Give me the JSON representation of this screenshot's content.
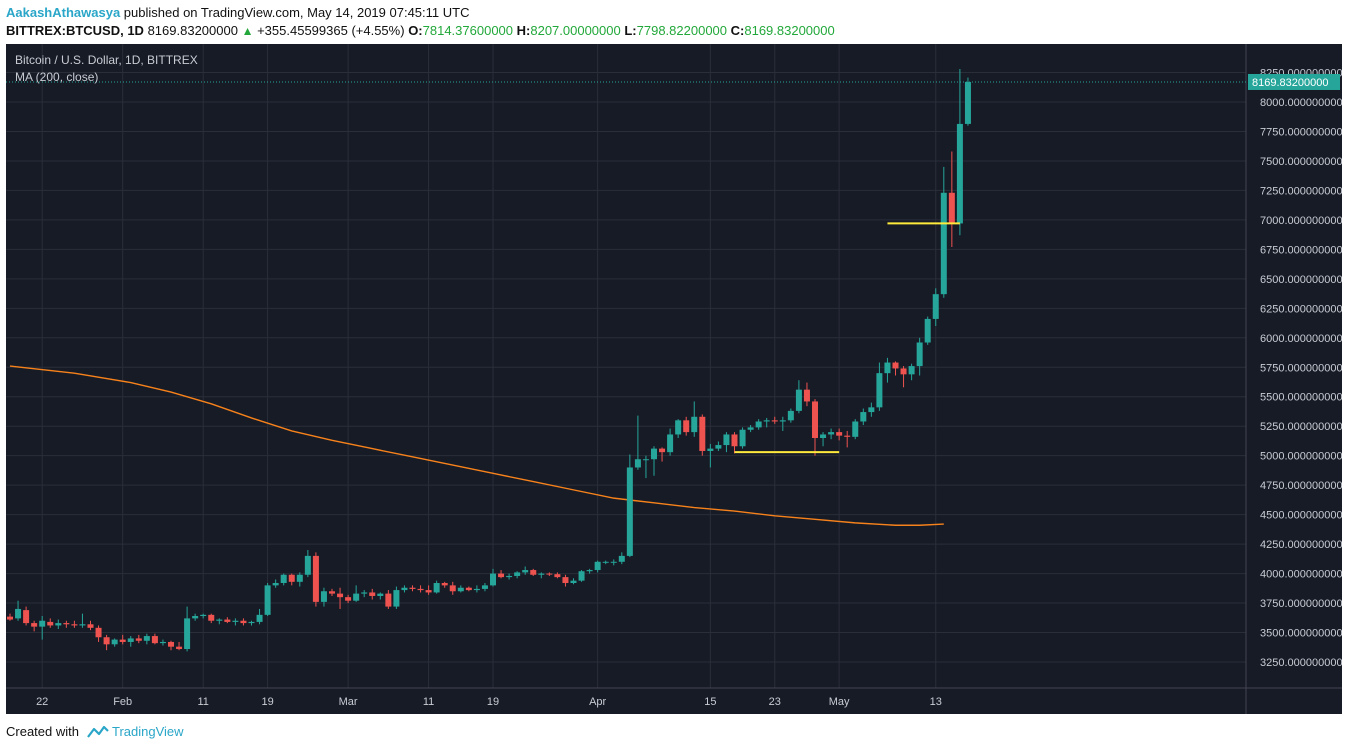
{
  "header": {
    "author": "AakashAthawasya",
    "published": "published on TradingView.com, May 14, 2019 07:45:11 UTC",
    "symbol": "BITTREX:BTCUSD, 1D",
    "last": "8169.83200000",
    "change": "+355.45599365 (+4.55%)",
    "o_label": "O:",
    "o_val": "7814.37600000",
    "h_label": "H:",
    "h_val": "8207.00000000",
    "l_label": "L:",
    "l_val": "7798.82200000",
    "c_label": "C:",
    "c_val": "8169.83200000"
  },
  "legend": {
    "title": "Bitcoin / U.S. Dollar, 1D, BITTREX",
    "indicator": "MA (200, close)"
  },
  "footer": {
    "created": "Created with",
    "brand": "TradingView"
  },
  "colors": {
    "up": "#26a69a",
    "down": "#ef5350",
    "ma": "#f7821b",
    "support": "#ffeb3b",
    "grid": "#2a2e39",
    "bg": "#171b26"
  },
  "chart_data": {
    "type": "candlestick",
    "title": "Bitcoin / U.S. Dollar, 1D, BITTREX",
    "last_price_label": "8169.83200000",
    "y_ticks": [
      3250,
      3500,
      3750,
      4000,
      4250,
      4500,
      4750,
      5000,
      5250,
      5500,
      5750,
      6000,
      6250,
      6500,
      6750,
      7000,
      7250,
      7500,
      7750,
      8000,
      8250
    ],
    "y_tick_labels": [
      "3250.000000000",
      "3500.000000000",
      "3750.000000000",
      "4000.000000000",
      "4250.000000000",
      "4500.000000000",
      "4750.000000000",
      "5000.000000000",
      "5250.000000000",
      "5500.000000000",
      "5750.000000000",
      "6000.000000000",
      "6250.000000000",
      "6500.000000000",
      "6750.000000000",
      "7000.000000000",
      "7250.000000000",
      "7500.000000000",
      "7750.000000000",
      "8000.000000000",
      "8250.000000000"
    ],
    "x_ticks": [
      {
        "i": 4,
        "label": "22"
      },
      {
        "i": 14,
        "label": "Feb"
      },
      {
        "i": 24,
        "label": "11"
      },
      {
        "i": 32,
        "label": "19"
      },
      {
        "i": 42,
        "label": "Mar"
      },
      {
        "i": 52,
        "label": "11"
      },
      {
        "i": 60,
        "label": "19"
      },
      {
        "i": 73,
        "label": "Apr"
      },
      {
        "i": 87,
        "label": "15"
      },
      {
        "i": 95,
        "label": "23"
      },
      {
        "i": 103,
        "label": "May"
      },
      {
        "i": 115,
        "label": "13"
      }
    ],
    "candles": [
      {
        "o": 3635,
        "h": 3660,
        "l": 3600,
        "c": 3610
      },
      {
        "o": 3620,
        "h": 3770,
        "l": 3600,
        "c": 3700
      },
      {
        "o": 3690,
        "h": 3720,
        "l": 3560,
        "c": 3580
      },
      {
        "o": 3580,
        "h": 3600,
        "l": 3510,
        "c": 3550
      },
      {
        "o": 3550,
        "h": 3640,
        "l": 3440,
        "c": 3600
      },
      {
        "o": 3590,
        "h": 3620,
        "l": 3540,
        "c": 3560
      },
      {
        "o": 3560,
        "h": 3610,
        "l": 3530,
        "c": 3580
      },
      {
        "o": 3580,
        "h": 3600,
        "l": 3540,
        "c": 3570
      },
      {
        "o": 3570,
        "h": 3600,
        "l": 3540,
        "c": 3560
      },
      {
        "o": 3560,
        "h": 3660,
        "l": 3540,
        "c": 3570
      },
      {
        "o": 3570,
        "h": 3600,
        "l": 3520,
        "c": 3540
      },
      {
        "o": 3540,
        "h": 3560,
        "l": 3420,
        "c": 3460
      },
      {
        "o": 3460,
        "h": 3480,
        "l": 3350,
        "c": 3400
      },
      {
        "o": 3400,
        "h": 3450,
        "l": 3380,
        "c": 3440
      },
      {
        "o": 3440,
        "h": 3480,
        "l": 3400,
        "c": 3420
      },
      {
        "o": 3420,
        "h": 3470,
        "l": 3380,
        "c": 3450
      },
      {
        "o": 3450,
        "h": 3480,
        "l": 3410,
        "c": 3430
      },
      {
        "o": 3430,
        "h": 3490,
        "l": 3400,
        "c": 3470
      },
      {
        "o": 3470,
        "h": 3490,
        "l": 3400,
        "c": 3410
      },
      {
        "o": 3410,
        "h": 3440,
        "l": 3390,
        "c": 3420
      },
      {
        "o": 3420,
        "h": 3430,
        "l": 3350,
        "c": 3380
      },
      {
        "o": 3380,
        "h": 3420,
        "l": 3350,
        "c": 3360
      },
      {
        "o": 3360,
        "h": 3720,
        "l": 3340,
        "c": 3620
      },
      {
        "o": 3620,
        "h": 3660,
        "l": 3600,
        "c": 3640
      },
      {
        "o": 3640,
        "h": 3660,
        "l": 3620,
        "c": 3650
      },
      {
        "o": 3650,
        "h": 3660,
        "l": 3580,
        "c": 3600
      },
      {
        "o": 3600,
        "h": 3620,
        "l": 3570,
        "c": 3610
      },
      {
        "o": 3610,
        "h": 3630,
        "l": 3580,
        "c": 3590
      },
      {
        "o": 3590,
        "h": 3620,
        "l": 3560,
        "c": 3600
      },
      {
        "o": 3600,
        "h": 3620,
        "l": 3560,
        "c": 3580
      },
      {
        "o": 3580,
        "h": 3600,
        "l": 3560,
        "c": 3590
      },
      {
        "o": 3590,
        "h": 3700,
        "l": 3570,
        "c": 3650
      },
      {
        "o": 3650,
        "h": 3920,
        "l": 3640,
        "c": 3900
      },
      {
        "o": 3900,
        "h": 3950,
        "l": 3880,
        "c": 3920
      },
      {
        "o": 3920,
        "h": 4000,
        "l": 3900,
        "c": 3990
      },
      {
        "o": 3990,
        "h": 4000,
        "l": 3900,
        "c": 3930
      },
      {
        "o": 3930,
        "h": 4010,
        "l": 3890,
        "c": 3990
      },
      {
        "o": 3990,
        "h": 4200,
        "l": 3970,
        "c": 4150
      },
      {
        "o": 4150,
        "h": 4180,
        "l": 3720,
        "c": 3760
      },
      {
        "o": 3760,
        "h": 3880,
        "l": 3720,
        "c": 3850
      },
      {
        "o": 3850,
        "h": 3870,
        "l": 3810,
        "c": 3830
      },
      {
        "o": 3830,
        "h": 3880,
        "l": 3700,
        "c": 3800
      },
      {
        "o": 3800,
        "h": 3820,
        "l": 3750,
        "c": 3770
      },
      {
        "o": 3770,
        "h": 3900,
        "l": 3760,
        "c": 3830
      },
      {
        "o": 3830,
        "h": 3860,
        "l": 3800,
        "c": 3840
      },
      {
        "o": 3840,
        "h": 3870,
        "l": 3780,
        "c": 3810
      },
      {
        "o": 3810,
        "h": 3840,
        "l": 3780,
        "c": 3830
      },
      {
        "o": 3830,
        "h": 3860,
        "l": 3700,
        "c": 3720
      },
      {
        "o": 3720,
        "h": 3890,
        "l": 3700,
        "c": 3860
      },
      {
        "o": 3860,
        "h": 3900,
        "l": 3840,
        "c": 3880
      },
      {
        "o": 3880,
        "h": 3900,
        "l": 3850,
        "c": 3870
      },
      {
        "o": 3870,
        "h": 3900,
        "l": 3840,
        "c": 3860
      },
      {
        "o": 3860,
        "h": 3900,
        "l": 3820,
        "c": 3840
      },
      {
        "o": 3840,
        "h": 3940,
        "l": 3830,
        "c": 3920
      },
      {
        "o": 3920,
        "h": 3930,
        "l": 3880,
        "c": 3900
      },
      {
        "o": 3900,
        "h": 3930,
        "l": 3820,
        "c": 3850
      },
      {
        "o": 3850,
        "h": 3900,
        "l": 3840,
        "c": 3880
      },
      {
        "o": 3880,
        "h": 3890,
        "l": 3850,
        "c": 3860
      },
      {
        "o": 3860,
        "h": 3900,
        "l": 3840,
        "c": 3870
      },
      {
        "o": 3870,
        "h": 3920,
        "l": 3850,
        "c": 3900
      },
      {
        "o": 3900,
        "h": 4040,
        "l": 3890,
        "c": 4000
      },
      {
        "o": 4000,
        "h": 4030,
        "l": 3960,
        "c": 3970
      },
      {
        "o": 3970,
        "h": 4000,
        "l": 3950,
        "c": 3980
      },
      {
        "o": 3980,
        "h": 4020,
        "l": 3960,
        "c": 4010
      },
      {
        "o": 4010,
        "h": 4060,
        "l": 3990,
        "c": 4030
      },
      {
        "o": 4030,
        "h": 4040,
        "l": 3980,
        "c": 3990
      },
      {
        "o": 3990,
        "h": 4010,
        "l": 3960,
        "c": 4000
      },
      {
        "o": 4000,
        "h": 4010,
        "l": 3980,
        "c": 3995
      },
      {
        "o": 3995,
        "h": 4010,
        "l": 3960,
        "c": 3970
      },
      {
        "o": 3970,
        "h": 3990,
        "l": 3890,
        "c": 3920
      },
      {
        "o": 3920,
        "h": 3960,
        "l": 3910,
        "c": 3940
      },
      {
        "o": 3940,
        "h": 4030,
        "l": 3930,
        "c": 4020
      },
      {
        "o": 4020,
        "h": 4040,
        "l": 4000,
        "c": 4030
      },
      {
        "o": 4030,
        "h": 4110,
        "l": 4010,
        "c": 4100
      },
      {
        "o": 4100,
        "h": 4110,
        "l": 4080,
        "c": 4100
      },
      {
        "o": 4100,
        "h": 4120,
        "l": 4070,
        "c": 4100
      },
      {
        "o": 4100,
        "h": 4180,
        "l": 4080,
        "c": 4150
      },
      {
        "o": 4150,
        "h": 5010,
        "l": 4140,
        "c": 4900
      },
      {
        "o": 4900,
        "h": 5340,
        "l": 4880,
        "c": 4970
      },
      {
        "o": 4970,
        "h": 5000,
        "l": 4810,
        "c": 4970
      },
      {
        "o": 4970,
        "h": 5080,
        "l": 4830,
        "c": 5060
      },
      {
        "o": 5060,
        "h": 5070,
        "l": 4950,
        "c": 5030
      },
      {
        "o": 5030,
        "h": 5230,
        "l": 5000,
        "c": 5180
      },
      {
        "o": 5180,
        "h": 5310,
        "l": 5150,
        "c": 5300
      },
      {
        "o": 5300,
        "h": 5330,
        "l": 5170,
        "c": 5200
      },
      {
        "o": 5200,
        "h": 5460,
        "l": 5160,
        "c": 5330
      },
      {
        "o": 5330,
        "h": 5350,
        "l": 5000,
        "c": 5040
      },
      {
        "o": 5040,
        "h": 5100,
        "l": 4900,
        "c": 5060
      },
      {
        "o": 5060,
        "h": 5120,
        "l": 5040,
        "c": 5090
      },
      {
        "o": 5090,
        "h": 5200,
        "l": 5030,
        "c": 5180
      },
      {
        "o": 5180,
        "h": 5200,
        "l": 5020,
        "c": 5080
      },
      {
        "o": 5080,
        "h": 5240,
        "l": 5060,
        "c": 5220
      },
      {
        "o": 5220,
        "h": 5260,
        "l": 5200,
        "c": 5240
      },
      {
        "o": 5240,
        "h": 5310,
        "l": 5220,
        "c": 5290
      },
      {
        "o": 5290,
        "h": 5320,
        "l": 5240,
        "c": 5300
      },
      {
        "o": 5300,
        "h": 5330,
        "l": 5270,
        "c": 5290
      },
      {
        "o": 5290,
        "h": 5330,
        "l": 5210,
        "c": 5300
      },
      {
        "o": 5300,
        "h": 5400,
        "l": 5280,
        "c": 5380
      },
      {
        "o": 5380,
        "h": 5640,
        "l": 5360,
        "c": 5560
      },
      {
        "o": 5560,
        "h": 5620,
        "l": 5420,
        "c": 5460
      },
      {
        "o": 5460,
        "h": 5480,
        "l": 5000,
        "c": 5150
      },
      {
        "o": 5150,
        "h": 5200,
        "l": 5080,
        "c": 5180
      },
      {
        "o": 5180,
        "h": 5230,
        "l": 5140,
        "c": 5200
      },
      {
        "o": 5200,
        "h": 5230,
        "l": 5130,
        "c": 5170
      },
      {
        "o": 5170,
        "h": 5210,
        "l": 5070,
        "c": 5160
      },
      {
        "o": 5160,
        "h": 5310,
        "l": 5140,
        "c": 5290
      },
      {
        "o": 5290,
        "h": 5400,
        "l": 5260,
        "c": 5370
      },
      {
        "o": 5370,
        "h": 5450,
        "l": 5330,
        "c": 5410
      },
      {
        "o": 5410,
        "h": 5790,
        "l": 5380,
        "c": 5700
      },
      {
        "o": 5700,
        "h": 5830,
        "l": 5620,
        "c": 5790
      },
      {
        "o": 5790,
        "h": 5800,
        "l": 5680,
        "c": 5740
      },
      {
        "o": 5740,
        "h": 5760,
        "l": 5580,
        "c": 5690
      },
      {
        "o": 5690,
        "h": 5780,
        "l": 5640,
        "c": 5760
      },
      {
        "o": 5760,
        "h": 6000,
        "l": 5680,
        "c": 5960
      },
      {
        "o": 5960,
        "h": 6180,
        "l": 5940,
        "c": 6160
      },
      {
        "o": 6160,
        "h": 6420,
        "l": 6100,
        "c": 6370
      },
      {
        "o": 6370,
        "h": 7450,
        "l": 6340,
        "c": 7230
      },
      {
        "o": 7230,
        "h": 7580,
        "l": 6770,
        "c": 6970
      },
      {
        "o": 6970,
        "h": 8280,
        "l": 6870,
        "c": 7814
      },
      {
        "o": 7814,
        "h": 8207,
        "l": 7799,
        "c": 8170
      }
    ],
    "ma": [
      [
        0,
        5760
      ],
      [
        8,
        5700
      ],
      [
        15,
        5620
      ],
      [
        20,
        5540
      ],
      [
        25,
        5440
      ],
      [
        30,
        5320
      ],
      [
        35,
        5210
      ],
      [
        40,
        5130
      ],
      [
        45,
        5060
      ],
      [
        50,
        4990
      ],
      [
        55,
        4920
      ],
      [
        60,
        4850
      ],
      [
        65,
        4780
      ],
      [
        70,
        4710
      ],
      [
        75,
        4640
      ],
      [
        80,
        4600
      ],
      [
        85,
        4560
      ],
      [
        90,
        4530
      ],
      [
        95,
        4490
      ],
      [
        100,
        4460
      ],
      [
        105,
        4430
      ],
      [
        110,
        4410
      ],
      [
        113,
        4410
      ],
      [
        116,
        4420
      ]
    ],
    "support_lines": [
      {
        "from": 90,
        "to": 103,
        "price": 5030
      },
      {
        "from": 109,
        "to": 118,
        "price": 6970
      }
    ]
  }
}
